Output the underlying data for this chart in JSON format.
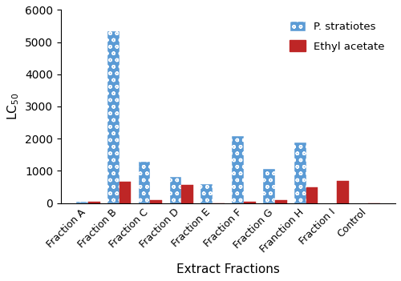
{
  "categories": [
    "Fraction A",
    "Fraction B",
    "Fraction C",
    "Fraction D",
    "Fraction E",
    "Fraction F",
    "Fraction G",
    "Franction H",
    "Fraction I",
    "Control"
  ],
  "blue_values": [
    50,
    5350,
    1280,
    800,
    580,
    2080,
    1060,
    1880,
    0,
    0
  ],
  "red_values": [
    50,
    650,
    75,
    550,
    0,
    50,
    75,
    480,
    680,
    0
  ],
  "blue_color": "#5b9bd5",
  "red_color": "#be2626",
  "ylabel": "LC$_{50}$",
  "xlabel": "Extract Fractions",
  "ylim": [
    0,
    6000
  ],
  "yticks": [
    0,
    1000,
    2000,
    3000,
    4000,
    5000,
    6000
  ],
  "legend_blue": "P. stratiotes",
  "legend_red": "Ethyl acetate",
  "bar_width": 0.38,
  "figsize": [
    5.0,
    3.51
  ],
  "dpi": 100
}
